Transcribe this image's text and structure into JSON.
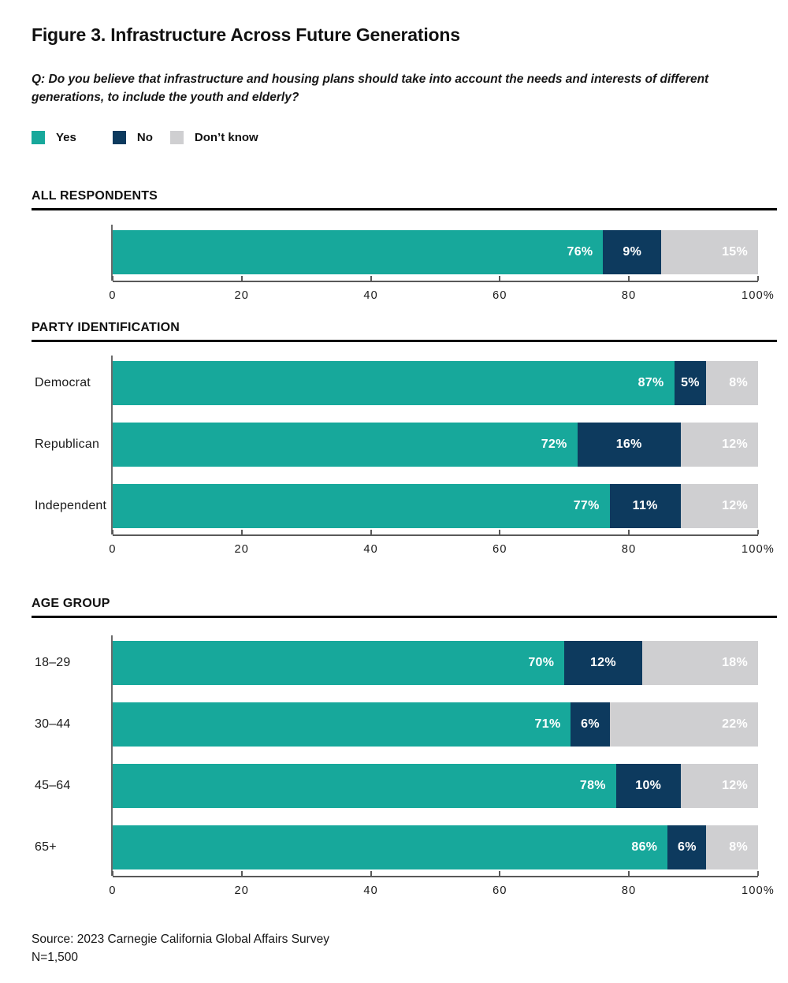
{
  "title": "Figure 3. Infrastructure Across Future Generations",
  "question": "Q: Do you believe that infrastructure and housing plans should take into account the needs and interests of different generations, to include the youth and elderly?",
  "legend": {
    "items": [
      {
        "label": "Yes"
      },
      {
        "label": "No"
      },
      {
        "label": "Don’t know"
      }
    ]
  },
  "colors": {
    "yes": "#17A89B",
    "no": "#0D3A5E",
    "dont_know": "#CFCFD1"
  },
  "x_axis": {
    "range": [
      0,
      100
    ],
    "tick_values": [
      0,
      20,
      40,
      60,
      80,
      100
    ],
    "tick_labels": [
      "0",
      "20",
      "40",
      "60",
      "80",
      "100%"
    ]
  },
  "chart_data": [
    {
      "type": "bar",
      "orientation": "horizontal",
      "stacked": true,
      "section_title": "ALL RESPONDENTS",
      "categories": [
        ""
      ],
      "series": [
        {
          "name": "Yes",
          "values": [
            76
          ]
        },
        {
          "name": "No",
          "values": [
            9
          ]
        },
        {
          "name": "Don’t know",
          "values": [
            15
          ]
        }
      ],
      "value_suffix": "%",
      "xlim": [
        0,
        100
      ]
    },
    {
      "type": "bar",
      "orientation": "horizontal",
      "stacked": true,
      "section_title": "PARTY IDENTIFICATION",
      "categories": [
        "Democrat",
        "Republican",
        "Independent"
      ],
      "series": [
        {
          "name": "Yes",
          "values": [
            87,
            72,
            77
          ]
        },
        {
          "name": "No",
          "values": [
            5,
            16,
            11
          ]
        },
        {
          "name": "Don’t know",
          "values": [
            8,
            12,
            12
          ]
        }
      ],
      "value_suffix": "%",
      "xlim": [
        0,
        100
      ]
    },
    {
      "type": "bar",
      "orientation": "horizontal",
      "stacked": true,
      "section_title": "AGE GROUP",
      "categories": [
        "18–29",
        "30–44",
        "45–64",
        "65+"
      ],
      "series": [
        {
          "name": "Yes",
          "values": [
            70,
            71,
            78,
            86
          ]
        },
        {
          "name": "No",
          "values": [
            12,
            6,
            10,
            6
          ]
        },
        {
          "name": "Don’t know",
          "values": [
            18,
            22,
            12,
            8
          ]
        }
      ],
      "value_suffix": "%",
      "xlim": [
        0,
        100
      ]
    }
  ],
  "source": "Source: 2023 Carnegie California Global Affairs Survey",
  "sample_size": "N=1,500"
}
